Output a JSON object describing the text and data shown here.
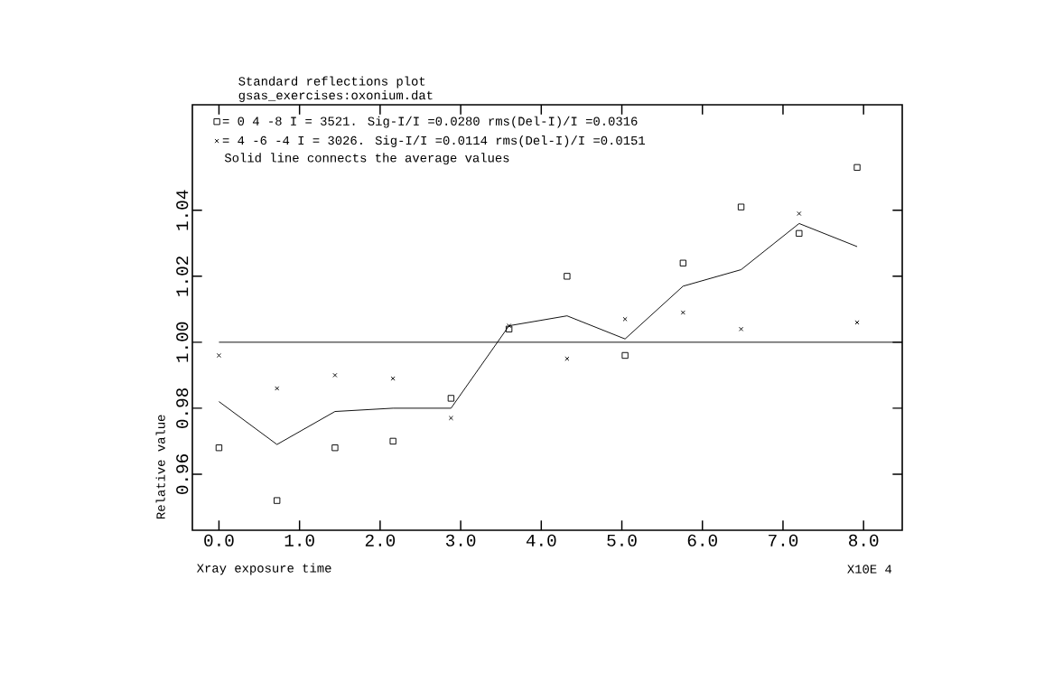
{
  "chart_data": {
    "type": "scatter",
    "title": "Standard reflections plot",
    "subtitle": "gsas_exercises:oxonium.dat",
    "xlabel": "Xray exposure time",
    "ylabel": "Relative value",
    "annotations": [
      "Solid line connects the average values",
      "X10E 4"
    ],
    "x": [
      0,
      0.72,
      1.44,
      2.16,
      2.88,
      3.6,
      4.32,
      5.04,
      5.76,
      6.48,
      7.2,
      7.92
    ],
    "series": [
      {
        "name": "= 0 4 -8 I = 3521. Sig-I/I =0.0280 rms(Del-I)/I =0.0316",
        "color": "#000000",
        "marker": "square",
        "values": [
          0.968,
          0.952,
          0.968,
          0.97,
          0.983,
          1.004,
          1.02,
          0.996,
          1.024,
          1.041,
          1.033,
          1.053
        ]
      },
      {
        "name": "= 4 -6 -4 I = 3026. Sig-I/I =0.0114 rms(Del-I)/I =0.0151",
        "color": "#000000",
        "marker": "cross",
        "values": [
          0.996,
          0.986,
          0.99,
          0.989,
          0.977,
          1.005,
          0.995,
          1.007,
          1.009,
          1.004,
          1.039,
          1.006
        ]
      },
      {
        "type": "line",
        "color": "#000000",
        "marker": "none",
        "values": [
          0.982,
          0.969,
          0.979,
          0.98,
          0.98,
          1.005,
          1.008,
          1.001,
          1.017,
          1.022,
          1.036,
          1.029
        ]
      }
    ],
    "ref_lines": [
      {
        "axis": "y",
        "value": 1.0,
        "color": "#000000"
      }
    ],
    "xlim": [
      -0.33,
      8.48
    ],
    "ylim": [
      0.943,
      1.072
    ],
    "xticks": [
      {
        "value": 0,
        "label": "0.0"
      },
      {
        "value": 1,
        "label": "1.0"
      },
      {
        "value": 2,
        "label": "2.0"
      },
      {
        "value": 3,
        "label": "3.0"
      },
      {
        "value": 4,
        "label": "4.0"
      },
      {
        "value": 5,
        "label": "5.0"
      },
      {
        "value": 6,
        "label": "6.0"
      },
      {
        "value": 7,
        "label": "7.0"
      },
      {
        "value": 8,
        "label": "8.0"
      }
    ],
    "yticks": [
      0.96,
      0.98,
      {
        "value": 1.0,
        "label": "1.00"
      },
      1.02,
      1.04
    ],
    "legend": "top left"
  }
}
